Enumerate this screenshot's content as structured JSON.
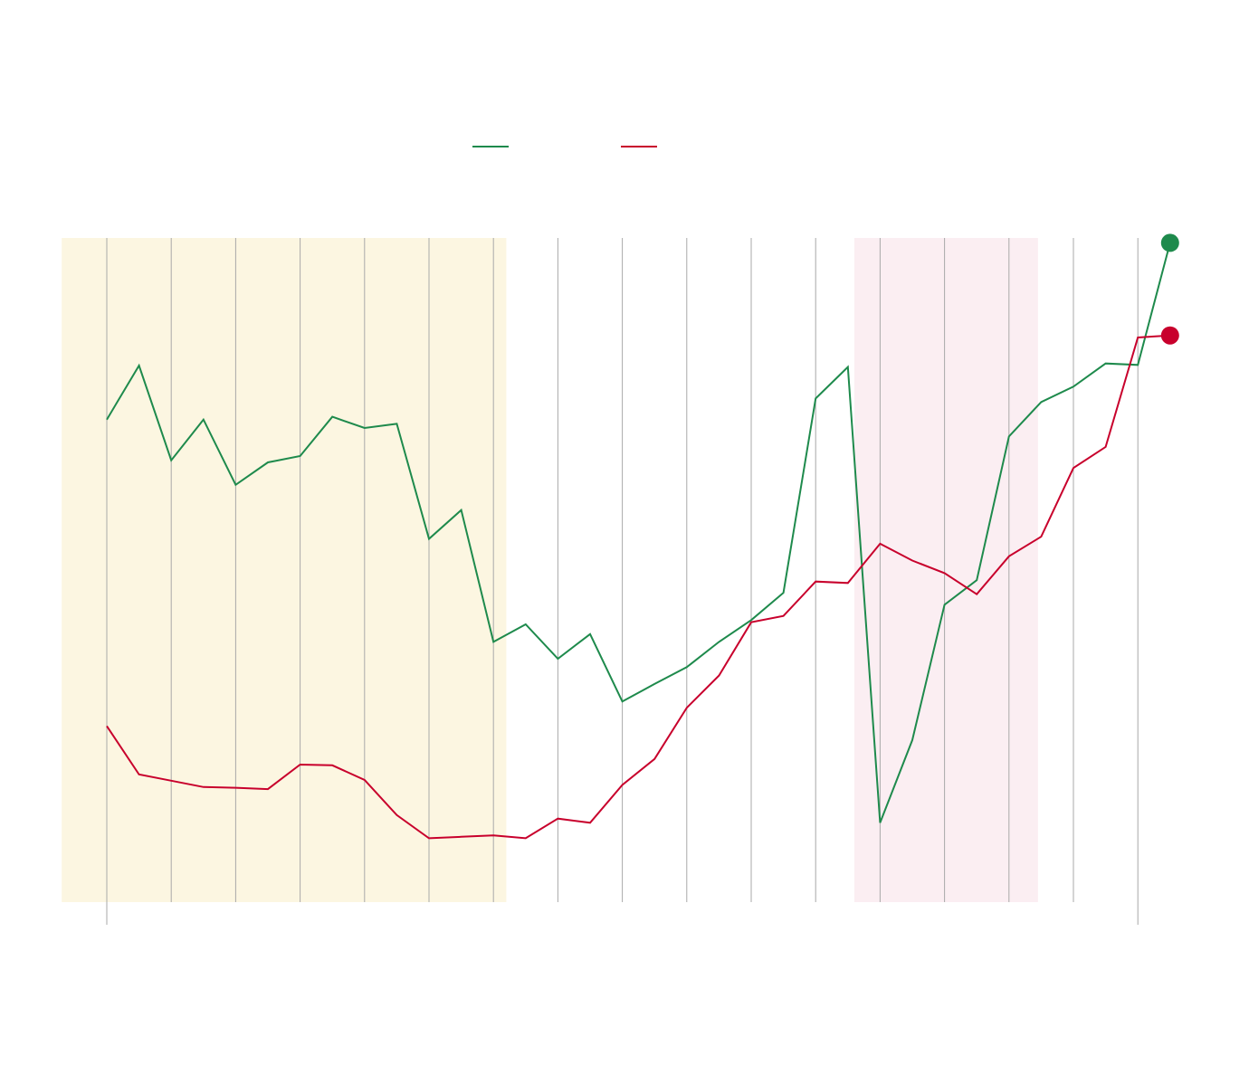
{
  "chart_data": {
    "type": "line",
    "title": "",
    "xlabel": "",
    "ylabel": "",
    "x": [
      0,
      0.5,
      1,
      1.5,
      2,
      2.5,
      3,
      3.5,
      4,
      4.5,
      5,
      5.5,
      6,
      6.5,
      7,
      7.5,
      8,
      8.5,
      9,
      9.5,
      10,
      10.5,
      11,
      11.5,
      12,
      12.5,
      13,
      13.5,
      14,
      14.5,
      15,
      15.5,
      16,
      16.5
    ],
    "xlim": [
      -0.7,
      17.2
    ],
    "ylim": [
      0,
      100
    ],
    "grid": "vertical",
    "legend_placement": "top-center",
    "series": [
      {
        "name": "",
        "color": "#1e8a4c",
        "end_marker": true,
        "values": [
          69.2,
          76.9,
          63.4,
          69.2,
          59.9,
          63.1,
          64.0,
          69.6,
          68.0,
          68.6,
          52.2,
          56.3,
          37.5,
          40.0,
          35.1,
          38.6,
          29.0,
          31.5,
          33.9,
          37.5,
          40.6,
          44.5,
          72.2,
          76.7,
          11.7,
          23.5,
          42.8,
          46.3,
          66.8,
          71.7,
          73.9,
          77.2,
          77.0,
          94.4
        ]
      },
      {
        "name": "",
        "color": "#c8002c",
        "end_marker": true,
        "values": [
          25.5,
          18.6,
          17.7,
          16.8,
          16.7,
          16.5,
          20.0,
          19.9,
          17.8,
          12.8,
          9.5,
          9.7,
          9.9,
          9.5,
          12.3,
          11.7,
          17.1,
          20.8,
          28.1,
          32.7,
          40.3,
          41.2,
          46.1,
          45.9,
          51.5,
          49.1,
          47.3,
          44.3,
          49.7,
          52.5,
          62.3,
          65.3,
          80.9,
          81.2
        ]
      }
    ],
    "shaded_ranges": [
      {
        "x": [
          -0.7,
          6.2
        ],
        "color": "#fcf6e1"
      },
      {
        "x": [
          11.6,
          14.45
        ],
        "color": "#fbeef2"
      }
    ]
  }
}
